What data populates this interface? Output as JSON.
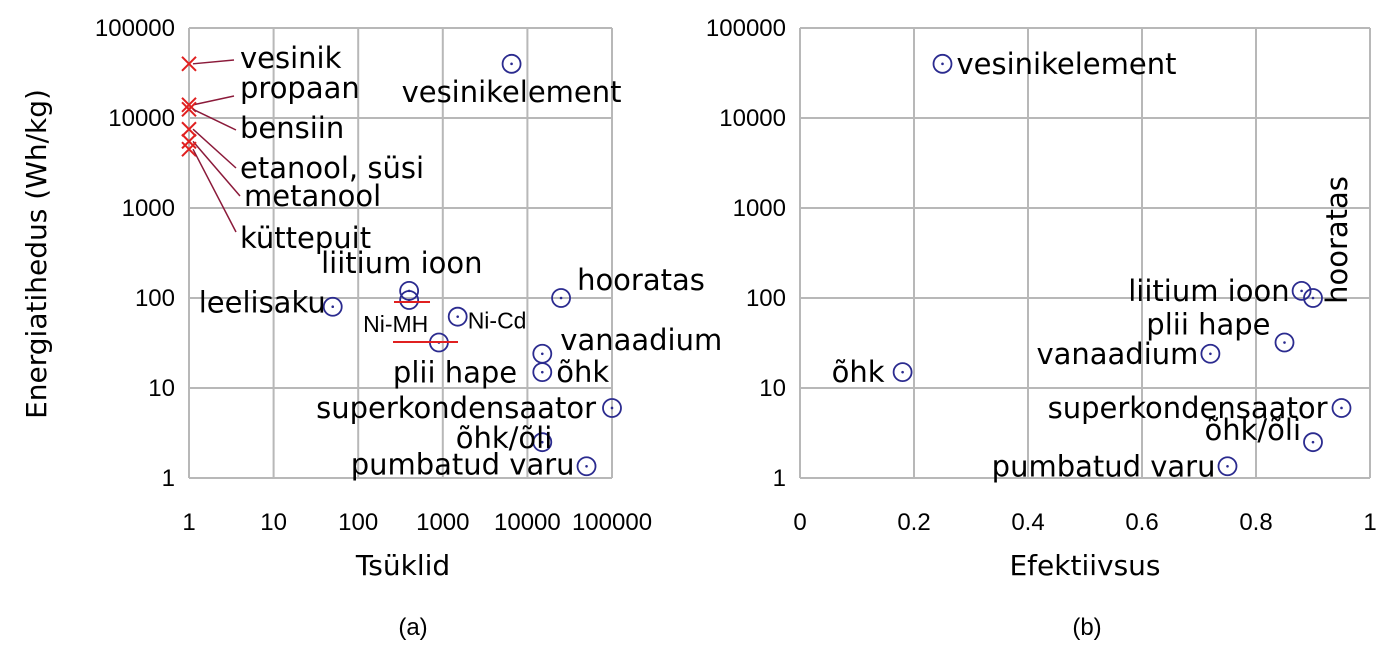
{
  "chart_data": [
    {
      "type": "scatter",
      "panel_label": "(a)",
      "xlabel": "Tsüklid",
      "ylabel": "Energiatihedus (Wh/kg)",
      "xscale": "log",
      "yscale": "log",
      "xlim": [
        1,
        100000
      ],
      "ylim": [
        1,
        100000
      ],
      "xticks": [
        "1",
        "10",
        "100",
        "1000",
        "10000",
        "100000"
      ],
      "yticks": [
        "1",
        "10",
        "100",
        "1000",
        "10000",
        "100000"
      ],
      "grid": true,
      "fuels": [
        {
          "name": "vesinik",
          "x": 1,
          "y": 40000
        },
        {
          "name": "propaan",
          "x": 1,
          "y": 14000
        },
        {
          "name": "bensiin",
          "x": 1,
          "y": 12500
        },
        {
          "name": "etanool, süsi",
          "x": 1,
          "y": 7500
        },
        {
          "name": "metanool",
          "x": 1,
          "y": 5500
        },
        {
          "name": "küttepuit",
          "x": 1,
          "y": 4500
        }
      ],
      "points": [
        {
          "name": "vesinikelement",
          "x": 6500,
          "y": 40000
        },
        {
          "name": "hooratas",
          "x": 25000,
          "y": 100
        },
        {
          "name": "leelisaku",
          "x": 50,
          "y": 80
        },
        {
          "name": "liitium ioon",
          "x": 400,
          "y": 120
        },
        {
          "name": "Ni-MH",
          "x": 400,
          "y": 95
        },
        {
          "name": "Ni-Cd",
          "x": 1500,
          "y": 62
        },
        {
          "name": "plii hape",
          "x": 900,
          "y": 32
        },
        {
          "name": "vanaadium",
          "x": 15000,
          "y": 24
        },
        {
          "name": "õhk",
          "x": 15000,
          "y": 15
        },
        {
          "name": "superkondensaator",
          "x": 100000,
          "y": 6
        },
        {
          "name": "õhk/õli",
          "x": 15000,
          "y": 2.5
        },
        {
          "name": "pumbatud varu",
          "x": 50000,
          "y": 1.35
        }
      ]
    },
    {
      "type": "scatter",
      "panel_label": "(b)",
      "xlabel": "Efektiivsus",
      "yscale": "log",
      "xlim": [
        0,
        1
      ],
      "ylim": [
        1,
        100000
      ],
      "xticks": [
        "0",
        "0.2",
        "0.4",
        "0.6",
        "0.8",
        "1"
      ],
      "yticks": [
        "1",
        "10",
        "100",
        "1000",
        "10000",
        "100000"
      ],
      "grid": true,
      "points": [
        {
          "name": "vesinikelement",
          "x": 0.25,
          "y": 40000
        },
        {
          "name": "õhk",
          "x": 0.18,
          "y": 15
        },
        {
          "name": "liitium ioon",
          "x": 0.88,
          "y": 120
        },
        {
          "name": "hooratas",
          "x": 0.9,
          "y": 100
        },
        {
          "name": "plii hape",
          "x": 0.85,
          "y": 32
        },
        {
          "name": "vanaadium",
          "x": 0.72,
          "y": 24
        },
        {
          "name": "superkondensaator",
          "x": 0.95,
          "y": 6
        },
        {
          "name": "õhk/õli",
          "x": 0.9,
          "y": 2.5
        },
        {
          "name": "pumbatud varu",
          "x": 0.75,
          "y": 1.35
        }
      ]
    }
  ]
}
